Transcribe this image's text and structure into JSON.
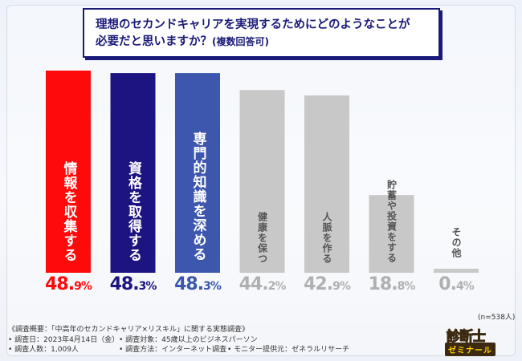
{
  "title": {
    "line1": "理想のセカンドキャリアを実現するためにどのようなことが",
    "line2": "必要だと思いますか？",
    "line2_sub": "(複数回答可)"
  },
  "chart_data": {
    "type": "bar",
    "categories": [
      "情報を収集する",
      "資格を取得する",
      "専門的知識を深める",
      "健康を保つ",
      "人脈を作る",
      "貯蓄や投資をする",
      "その他"
    ],
    "values": [
      48.9,
      48.3,
      48.3,
      44.2,
      42.9,
      18.8,
      0.4
    ],
    "value_labels": [
      {
        "int": "48.",
        "dec": "9%"
      },
      {
        "int": "48.",
        "dec": "3%"
      },
      {
        "int": "48.",
        "dec": "3%"
      },
      {
        "int": "44.",
        "dec": "2%"
      },
      {
        "int": "42.",
        "dec": "9%"
      },
      {
        "int": "18.",
        "dec": "8%"
      },
      {
        "int": "0.",
        "dec": "4%"
      }
    ],
    "bar_colors": [
      "#ff0a0a",
      "#1c1480",
      "#3d57ae",
      "#c8c8c8",
      "#c8c8c8",
      "#c8c8c8",
      "#c8c8c8"
    ],
    "label_colors": [
      "#ff0a0a",
      "#1c1480",
      "#3d57ae",
      "#b0b0b0",
      "#b0b0b0",
      "#b0b0b0",
      "#b0b0b0"
    ],
    "ylim": [
      0,
      48.9
    ],
    "n_note": "(n=538人)"
  },
  "survey": {
    "heading": "《調査概要：「中高年のセカンドキャリア×リスキル」に関する実態調査》",
    "date": "• 調査日：2023年4月14日（金）",
    "target": "• 調査対象：45歳以上のビジネスパーソン",
    "count": "• 調査人数：1,009人",
    "method": "• 調査方法：インターネット調査",
    "provider": "• モニター提供元：ゼネラルリサーチ"
  },
  "logo": {
    "line1": "診断士",
    "line2": "ゼミナール"
  }
}
